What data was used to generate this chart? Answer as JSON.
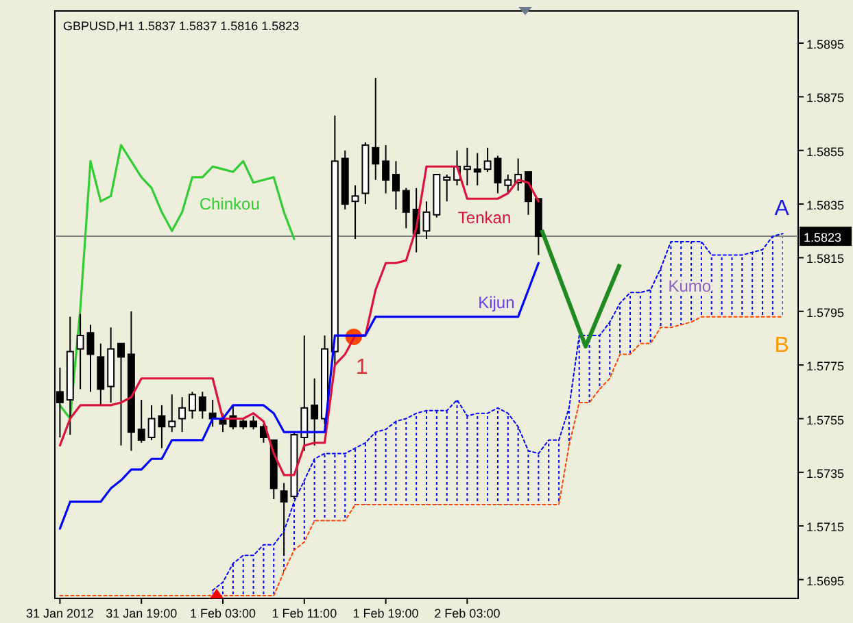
{
  "chart_data": {
    "type": "candlestick",
    "title": "GBPUSD,H1  1.5837 1.5837 1.5816 1.5823",
    "x": [
      "2012-01-31T11:00",
      "2012-01-31T12:00",
      "2012-01-31T13:00",
      "2012-01-31T14:00",
      "2012-01-31T15:00",
      "2012-01-31T16:00",
      "2012-01-31T17:00",
      "2012-01-31T18:00",
      "2012-01-31T19:00",
      "2012-01-31T20:00",
      "2012-01-31T21:00",
      "2012-01-31T22:00",
      "2012-01-31T23:00",
      "2012-02-01T00:00",
      "2012-02-01T01:00",
      "2012-02-01T02:00",
      "2012-02-01T03:00",
      "2012-02-01T04:00",
      "2012-02-01T05:00",
      "2012-02-01T06:00",
      "2012-02-01T07:00",
      "2012-02-01T08:00",
      "2012-02-01T09:00",
      "2012-02-01T10:00",
      "2012-02-01T11:00",
      "2012-02-01T12:00",
      "2012-02-01T13:00",
      "2012-02-01T14:00",
      "2012-02-01T15:00",
      "2012-02-01T16:00",
      "2012-02-01T17:00",
      "2012-02-01T18:00",
      "2012-02-01T19:00",
      "2012-02-01T20:00",
      "2012-02-01T21:00",
      "2012-02-01T22:00",
      "2012-02-01T23:00",
      "2012-02-02T00:00",
      "2012-02-02T01:00",
      "2012-02-02T02:00",
      "2012-02-02T03:00",
      "2012-02-02T04:00",
      "2012-02-02T05:00",
      "2012-02-02T06:00",
      "2012-02-02T07:00",
      "2012-02-02T08:00",
      "2012-02-02T09:00",
      "2012-02-02T10:00",
      "2012-02-02T11:00",
      "2012-02-02T12:00",
      "2012-02-02T13:00",
      "2012-02-02T14:00",
      "2012-02-02T15:00",
      "2012-02-02T16:00",
      "2012-02-02T17:00",
      "2012-02-02T18:00",
      "2012-02-02T19:00",
      "2012-02-02T20:00",
      "2012-02-02T21:00",
      "2012-02-02T22:00",
      "2012-02-02T23:00",
      "2012-02-03T00:00",
      "2012-02-03T01:00",
      "2012-02-03T02:00",
      "2012-02-03T03:00",
      "2012-02-03T04:00",
      "2012-02-03T05:00",
      "2012-02-03T06:00",
      "2012-02-03T07:00",
      "2012-02-03T08:00",
      "2012-02-03T09:00",
      "2012-02-03T10:00"
    ],
    "ohlc": [
      [
        1.5765,
        1.5774,
        1.5748,
        1.5761
      ],
      [
        1.5762,
        1.5793,
        1.5749,
        1.578
      ],
      [
        1.5781,
        1.5794,
        1.5766,
        1.5786
      ],
      [
        1.5787,
        1.579,
        1.5765,
        1.5779
      ],
      [
        1.5778,
        1.5783,
        1.576,
        1.5766
      ],
      [
        1.5767,
        1.5789,
        1.5761,
        1.5781
      ],
      [
        1.5783,
        1.5783,
        1.5745,
        1.5778
      ],
      [
        1.5779,
        1.5795,
        1.5743,
        1.575
      ],
      [
        1.5751,
        1.5762,
        1.5746,
        1.5747
      ],
      [
        1.5748,
        1.576,
        1.5747,
        1.5755
      ],
      [
        1.5756,
        1.576,
        1.5744,
        1.5752
      ],
      [
        1.5752,
        1.5764,
        1.575,
        1.5754
      ],
      [
        1.5755,
        1.5763,
        1.575,
        1.5759
      ],
      [
        1.5758,
        1.5765,
        1.5755,
        1.5764
      ],
      [
        1.5763,
        1.5765,
        1.5755,
        1.5758
      ],
      [
        1.5757,
        1.5762,
        1.5752,
        1.5755
      ],
      [
        1.5755,
        1.5757,
        1.575,
        1.5753
      ],
      [
        1.5756,
        1.576,
        1.5751,
        1.5752
      ],
      [
        1.5754,
        1.5755,
        1.5751,
        1.5752
      ],
      [
        1.5754,
        1.5756,
        1.5751,
        1.5752
      ],
      [
        1.5752,
        1.5753,
        1.5746,
        1.5748
      ],
      [
        1.5747,
        1.5747,
        1.5725,
        1.5729
      ],
      [
        1.5728,
        1.5731,
        1.5704,
        1.5724
      ],
      [
        1.5726,
        1.575,
        1.5725,
        1.5749
      ],
      [
        1.5748,
        1.5786,
        1.5743,
        1.5759
      ],
      [
        1.576,
        1.577,
        1.5745,
        1.5755
      ],
      [
        1.5755,
        1.5786,
        1.5753,
        1.5781
      ],
      [
        1.578,
        1.5868,
        1.5775,
        1.5851
      ],
      [
        1.5852,
        1.5855,
        1.5833,
        1.5835
      ],
      [
        1.5836,
        1.5842,
        1.5822,
        1.5838
      ],
      [
        1.5839,
        1.5858,
        1.5835,
        1.5857
      ],
      [
        1.5856,
        1.5882,
        1.5844,
        1.585
      ],
      [
        1.5851,
        1.5857,
        1.5839,
        1.5844
      ],
      [
        1.5846,
        1.5851,
        1.5833,
        1.584
      ],
      [
        1.584,
        1.5841,
        1.5826,
        1.5832
      ],
      [
        1.5833,
        1.5841,
        1.5817,
        1.5824
      ],
      [
        1.5825,
        1.5836,
        1.5822,
        1.5832
      ],
      [
        1.5831,
        1.5846,
        1.583,
        1.5846
      ],
      [
        1.5844,
        1.5846,
        1.5836,
        1.5845
      ],
      [
        1.5844,
        1.5855,
        1.5842,
        1.5849
      ],
      [
        1.5848,
        1.5856,
        1.5842,
        1.5849
      ],
      [
        1.5848,
        1.5854,
        1.5842,
        1.5847
      ],
      [
        1.5848,
        1.5856,
        1.5847,
        1.5851
      ],
      [
        1.5852,
        1.5853,
        1.5839,
        1.5843
      ],
      [
        1.5842,
        1.5846,
        1.5839,
        1.5844
      ],
      [
        1.5843,
        1.5852,
        1.584,
        1.5846
      ],
      [
        1.5847,
        1.5847,
        1.5831,
        1.5836
      ],
      [
        1.5837,
        1.5837,
        1.5816,
        1.5823
      ],
      null,
      null,
      null,
      null,
      null,
      null,
      null,
      null,
      null,
      null,
      null,
      null,
      null,
      null,
      null,
      null,
      null,
      null,
      null,
      null,
      null,
      null,
      null,
      null
    ],
    "series": [
      {
        "type": "line",
        "color": "#dc143c",
        "line_style": "solid",
        "values": [
          1.5745,
          1.5755,
          1.576,
          1.576,
          1.576,
          1.576,
          1.5761,
          1.5763,
          1.577,
          1.577,
          1.577,
          1.577,
          1.577,
          1.577,
          1.577,
          1.577,
          1.5755,
          1.5755,
          1.5755,
          1.5757,
          1.5754,
          1.5742,
          1.5734,
          1.5734,
          1.5745,
          1.5746,
          1.5746,
          1.5775,
          1.5779,
          1.5786,
          1.5786,
          1.5803,
          1.5813,
          1.5813,
          1.5814,
          1.5826,
          1.5849,
          1.5849,
          1.5849,
          1.5849,
          1.5837,
          1.5837,
          1.5837,
          1.5837,
          1.5839,
          1.5844,
          1.5843,
          1.5836,
          null,
          null,
          null,
          null,
          null,
          null,
          null,
          null,
          null,
          null,
          null,
          null,
          null,
          null,
          null,
          null,
          null,
          null,
          null,
          null,
          null,
          null,
          null,
          null
        ]
      },
      {
        "type": "line",
        "color": "#0000ff",
        "line_style": "solid",
        "values": [
          1.5714,
          1.5724,
          1.5724,
          1.5724,
          1.5724,
          1.5729,
          1.5732,
          1.5736,
          1.5736,
          1.574,
          1.574,
          1.5747,
          1.5747,
          1.5747,
          1.5747,
          1.5755,
          1.5755,
          1.576,
          1.576,
          1.576,
          1.576,
          1.5757,
          1.575,
          1.575,
          1.575,
          1.575,
          1.575,
          1.5786,
          1.5786,
          1.5786,
          1.5786,
          1.5793,
          1.5793,
          1.5793,
          1.5793,
          1.5793,
          1.5793,
          1.5793,
          1.5793,
          1.5793,
          1.5793,
          1.5793,
          1.5793,
          1.5793,
          1.5793,
          1.5793,
          1.5803,
          1.5813,
          null,
          null,
          null,
          null,
          null,
          null,
          null,
          null,
          null,
          null,
          null,
          null,
          null,
          null,
          null,
          null,
          null,
          null,
          null,
          null,
          null,
          null,
          null,
          null
        ]
      },
      {
        "type": "line",
        "color": "#32cd32",
        "line_style": "solid",
        "values": [
          1.576,
          1.5755,
          1.5796,
          1.5851,
          1.5836,
          1.5838,
          1.5857,
          1.5851,
          1.5845,
          1.5841,
          1.5832,
          1.5825,
          1.5832,
          1.5845,
          1.5845,
          1.5849,
          1.5848,
          1.5847,
          1.5851,
          1.5843,
          1.5844,
          1.5845,
          1.5832,
          1.5822,
          null,
          null,
          null,
          null,
          null,
          null,
          null,
          null,
          null,
          null,
          null,
          null,
          null,
          null,
          null,
          null,
          null,
          null,
          null,
          null,
          null,
          null,
          null,
          null,
          null,
          null,
          null,
          null,
          null,
          null,
          null,
          null,
          null,
          null,
          null,
          null,
          null,
          null,
          null,
          null,
          null,
          null,
          null,
          null,
          null,
          null,
          null,
          null
        ]
      },
      {
        "type": "line",
        "color": "#0000ff",
        "line_style": "dotted",
        "values": [
          null,
          null,
          null,
          null,
          null,
          null,
          null,
          null,
          null,
          null,
          null,
          null,
          null,
          null,
          null,
          1.5691,
          1.5694,
          1.5701,
          1.5704,
          1.5704,
          1.5708,
          1.5708,
          1.5713,
          1.5724,
          1.5732,
          1.574,
          1.5742,
          1.5742,
          1.5742,
          1.5744,
          1.5746,
          1.575,
          1.5751,
          1.5754,
          1.5755,
          1.5757,
          1.5758,
          1.5758,
          1.5758,
          1.5762,
          1.5756,
          1.5757,
          1.5757,
          1.5759,
          1.5757,
          1.5752,
          1.5743,
          1.5742,
          1.5747,
          1.5747,
          1.5759,
          1.5786,
          1.5786,
          1.5786,
          1.5791,
          1.5798,
          1.5802,
          1.5802,
          1.5803,
          1.5811,
          1.5821,
          1.5821,
          1.5821,
          1.5821,
          1.5816,
          1.5816,
          1.5816,
          1.5816,
          1.5817,
          1.5818,
          1.5823,
          1.5824
        ]
      },
      {
        "type": "line",
        "color": "#ff4500",
        "line_style": "dotted",
        "values": [
          1.5689,
          1.5689,
          1.5689,
          1.5689,
          1.5689,
          1.5689,
          1.5689,
          1.5689,
          1.5689,
          1.5689,
          1.5689,
          1.5689,
          1.5689,
          1.5689,
          1.5689,
          1.5689,
          1.5689,
          1.5689,
          1.5689,
          1.5689,
          1.5689,
          1.5689,
          1.5698,
          1.5706,
          1.5709,
          1.5717,
          1.5717,
          1.5717,
          1.5717,
          1.5723,
          1.5723,
          1.5723,
          1.5723,
          1.5723,
          1.5723,
          1.5723,
          1.5723,
          1.5723,
          1.5723,
          1.5723,
          1.5723,
          1.5723,
          1.5723,
          1.5723,
          1.5723,
          1.5723,
          1.5723,
          1.5723,
          1.5723,
          1.5723,
          1.5745,
          1.5761,
          1.5761,
          1.5766,
          1.577,
          1.5779,
          1.5779,
          1.5783,
          1.5783,
          1.5789,
          1.5789,
          1.579,
          1.5791,
          1.5793,
          1.5793,
          1.5793,
          1.5793,
          1.5793,
          1.5793,
          1.5793,
          1.5793,
          1.5793
        ]
      }
    ],
    "xlim": [
      "2012-01-31T10:30",
      "2012-02-03T11:30"
    ],
    "xticks": [
      {
        "value": "2012-01-31T11:00",
        "label": "31 Jan 2012"
      },
      {
        "value": "2012-01-31T19:00",
        "label": "31 Jan 19:00"
      },
      {
        "value": "2012-02-01T03:00",
        "label": "1 Feb 03:00"
      },
      {
        "value": "2012-02-01T11:00",
        "label": "1 Feb 11:00"
      },
      {
        "value": "2012-02-01T19:00",
        "label": "1 Feb 19:00"
      },
      {
        "value": "2012-02-02T03:00",
        "label": "2 Feb 03:00"
      }
    ],
    "ylim": [
      1.5688,
      1.5907
    ],
    "yticks": [
      {
        "value": 1.5695,
        "label": "1.5695"
      },
      {
        "value": 1.5715,
        "label": "1.5715"
      },
      {
        "value": 1.5735,
        "label": "1.5735"
      },
      {
        "value": 1.5755,
        "label": "1.5755"
      },
      {
        "value": 1.5775,
        "label": "1.5775"
      },
      {
        "value": 1.5795,
        "label": "1.5795"
      },
      {
        "value": 1.5815,
        "label": "1.5815"
      },
      {
        "value": 1.5835,
        "label": "1.5835"
      },
      {
        "value": 1.5855,
        "label": "1.5855"
      },
      {
        "value": 1.5875,
        "label": "1.5875"
      },
      {
        "value": 1.5895,
        "label": "1.5895"
      }
    ],
    "ref_lines": [
      {
        "axis": "y",
        "value": 1.5823,
        "label": "1.5823",
        "color": "#808080"
      }
    ],
    "annotations": [
      "Chinkou",
      "Tenkan",
      "Kijun",
      "Kumo",
      "A",
      "B",
      "1"
    ]
  }
}
